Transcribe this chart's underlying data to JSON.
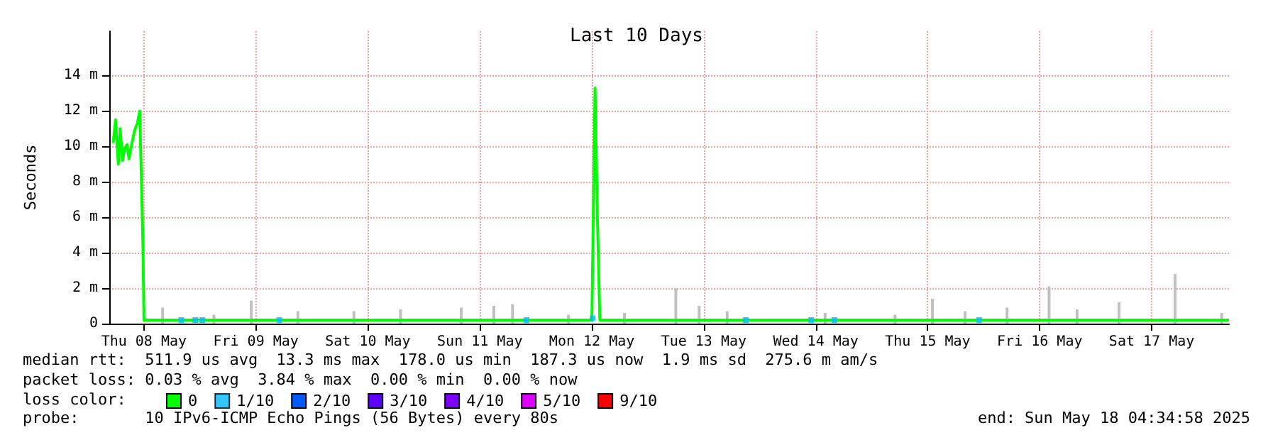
{
  "chart_data": {
    "type": "line",
    "title": "Last 10 Days",
    "ylabel": "Seconds",
    "xlim": [
      "2025-05-08T04:34",
      "2025-05-18T04:34"
    ],
    "xticks": [
      {
        "value": "2025-05-08T12:00",
        "label": "Thu 08 May"
      },
      {
        "value": "2025-05-09T12:00",
        "label": "Fri 09 May"
      },
      {
        "value": "2025-05-10T12:00",
        "label": "Sat 10 May"
      },
      {
        "value": "2025-05-11T12:00",
        "label": "Sun 11 May"
      },
      {
        "value": "2025-05-12T12:00",
        "label": "Mon 12 May"
      },
      {
        "value": "2025-05-13T12:00",
        "label": "Tue 13 May"
      },
      {
        "value": "2025-05-14T12:00",
        "label": "Wed 14 May"
      },
      {
        "value": "2025-05-15T12:00",
        "label": "Thu 15 May"
      },
      {
        "value": "2025-05-16T12:00",
        "label": "Fri 16 May"
      },
      {
        "value": "2025-05-17T12:00",
        "label": "Sat 17 May"
      }
    ],
    "ylim": [
      0,
      16.5
    ],
    "yticks": [
      0,
      {
        "value": 2,
        "label": "2 m"
      },
      {
        "value": 4,
        "label": "4 m"
      },
      {
        "value": 6,
        "label": "6 m"
      },
      {
        "value": 8,
        "label": "8 m"
      },
      {
        "value": 10,
        "label": "10 m"
      },
      {
        "value": 12,
        "label": "12 m"
      },
      {
        "value": 14,
        "label": "14 m"
      }
    ],
    "grid": true,
    "legend": "bottom",
    "series": [
      {
        "type": "bar",
        "color": "#c0c0c0",
        "x": [
          "2025-05-08T16:00",
          "2025-05-09T03:00",
          "2025-05-09T11:00",
          "2025-05-09T21:00",
          "2025-05-10T09:00",
          "2025-05-10T19:00",
          "2025-05-11T08:00",
          "2025-05-11T15:00",
          "2025-05-11T19:00",
          "2025-05-12T07:00",
          "2025-05-12T19:00",
          "2025-05-13T06:00",
          "2025-05-13T11:00",
          "2025-05-13T17:00",
          "2025-05-14T14:00",
          "2025-05-15T05:00",
          "2025-05-15T13:00",
          "2025-05-15T20:00",
          "2025-05-16T05:00",
          "2025-05-16T14:00",
          "2025-05-16T20:00",
          "2025-05-17T05:00",
          "2025-05-17T17:00",
          "2025-05-18T03:00"
        ],
        "values": [
          0.9,
          0.5,
          1.3,
          0.7,
          0.7,
          0.8,
          0.9,
          1.0,
          1.1,
          0.5,
          0.6,
          2.0,
          1.0,
          0.7,
          0.6,
          0.5,
          1.4,
          0.7,
          0.9,
          2.1,
          0.8,
          1.2,
          2.8,
          0.6
        ]
      },
      {
        "name": "0",
        "color": "#00ff00",
        "x": [
          "2025-05-08T05:24",
          "2025-05-08T05:55",
          "2025-05-08T06:30",
          "2025-05-08T06:54",
          "2025-05-08T07:25",
          "2025-05-08T07:53",
          "2025-05-08T08:24",
          "2025-05-08T08:47",
          "2025-05-08T09:30",
          "2025-05-08T10:00",
          "2025-05-08T10:35",
          "2025-05-08T11:06",
          "2025-05-08T11:47",
          "2025-05-08T12:00",
          "2025-05-09T00:00",
          "2025-05-10T00:00",
          "2025-05-11T00:00",
          "2025-05-12T00:00",
          "2025-05-12T12:00",
          "2025-05-12T12:41",
          "2025-05-12T13:12",
          "2025-05-12T13:43",
          "2025-05-13T00:00",
          "2025-05-14T00:00",
          "2025-05-15T00:00",
          "2025-05-16T00:00",
          "2025-05-17T00:00",
          "2025-05-18T04:34"
        ],
        "values": [
          10.2,
          11.5,
          9.0,
          11.0,
          9.2,
          9.9,
          10.1,
          9.3,
          10.3,
          10.9,
          11.3,
          12.0,
          4.4,
          0.2,
          0.2,
          0.2,
          0.2,
          0.2,
          0.2,
          13.3,
          5.9,
          0.2,
          0.2,
          0.2,
          0.2,
          0.2,
          0.2,
          0.2
        ]
      },
      {
        "name": "1/10",
        "color": "#00b8ff",
        "type": "scatter",
        "x": [
          "2025-05-08T20:00",
          "2025-05-08T23:00",
          "2025-05-09T00:30",
          "2025-05-09T17:00",
          "2025-05-11T22:00",
          "2025-05-12T12:10",
          "2025-05-13T21:00",
          "2025-05-14T11:00",
          "2025-05-14T16:00",
          "2025-05-15T23:00"
        ],
        "values": [
          0.2,
          0.2,
          0.2,
          0.2,
          0.2,
          0.3,
          0.2,
          0.2,
          0.2,
          0.2
        ]
      },
      {
        "name": "2/10",
        "color": "#0059ff"
      },
      {
        "name": "3/10",
        "color": "#5e00ff"
      },
      {
        "name": "4/10",
        "color": "#7e00ff"
      },
      {
        "name": "5/10",
        "color": "#dd00ff"
      },
      {
        "name": "9/10",
        "color": "#ff0000"
      }
    ],
    "annotations": [
      "median rtt:  511.9 us avg  13.3 ms max  178.0 us min  187.3 us now  1.9 ms sd  275.6 m am/s",
      "packet loss: 0.03 % avg  3.84 % max  0.00 % min  0.00 % now",
      "loss color:",
      "probe:       10 IPv6-ICMP Echo Pings (56 Bytes) every 80s",
      "end: Sun May 18 04:34:58 2025"
    ]
  }
}
